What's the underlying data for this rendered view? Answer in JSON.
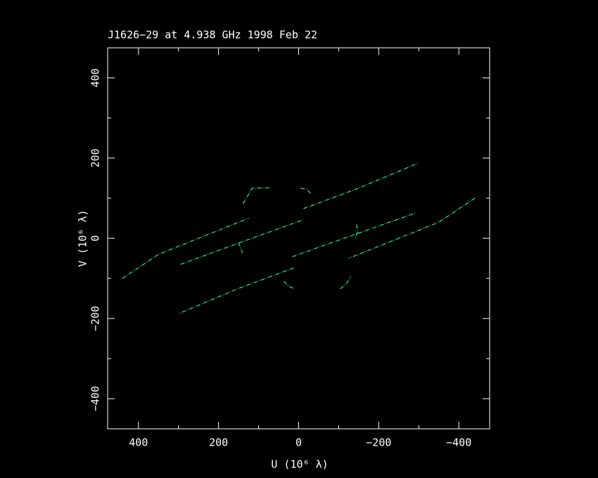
{
  "chart_data": {
    "type": "line",
    "title": "J1626−29 at 4.938 GHz 1998 Feb 22",
    "x_label": "U (10⁶ λ)",
    "y_label": "V (10⁶ λ)",
    "xlim": [
      477,
      -477
    ],
    "ylim": [
      -475,
      475
    ],
    "xticks": [
      {
        "value": 400,
        "label": "400"
      },
      {
        "value": 200,
        "label": "200"
      },
      {
        "value": 0,
        "label": "0"
      },
      {
        "value": -200,
        "label": "−200"
      },
      {
        "value": -400,
        "label": "−400"
      }
    ],
    "yticks": [
      {
        "value": -400,
        "label": "−400"
      },
      {
        "value": -200,
        "label": "−200"
      },
      {
        "value": 0,
        "label": "0"
      },
      {
        "value": 200,
        "label": "200"
      },
      {
        "value": 400,
        "label": "400"
      }
    ],
    "xminor_ticks": [
      300,
      100,
      -100,
      -300
    ],
    "yminor_ticks": [
      -300,
      -100,
      100,
      300
    ],
    "series": [
      {
        "color": "#22e07a",
        "x": [
          440,
          350,
          250,
          125,
          null,
          -12,
          -150,
          -300
        ],
        "values": [
          -100,
          -40,
          0,
          50,
          null,
          74,
          125,
          188
        ]
      },
      {
        "color": "#22e07a",
        "x": [
          -440,
          -350,
          -250,
          -125,
          null,
          12,
          150,
          300
        ],
        "values": [
          100,
          40,
          0,
          -50,
          null,
          -74,
          -125,
          -188
        ]
      },
      {
        "color": "#22e07a",
        "x": [
          295,
          150,
          -11,
          null,
          16,
          -150,
          -292
        ],
        "values": [
          -65,
          -12,
          46,
          null,
          -46,
          13,
          63
        ]
      },
      {
        "color": "#22e07a",
        "x": [
          139,
          116,
          72,
          null,
          -5,
          -20,
          -30,
          null,
          150,
          145,
          140,
          null,
          -145,
          -147,
          -140,
          null,
          37,
          25,
          10,
          null,
          -104,
          -120,
          -130
        ],
        "values": [
          86,
          125,
          126,
          null,
          125,
          122,
          112,
          null,
          -10,
          -25,
          -37,
          null,
          35,
          15,
          -2,
          null,
          -107,
          -120,
          -126,
          null,
          -126,
          -112,
          -95
        ]
      }
    ]
  }
}
